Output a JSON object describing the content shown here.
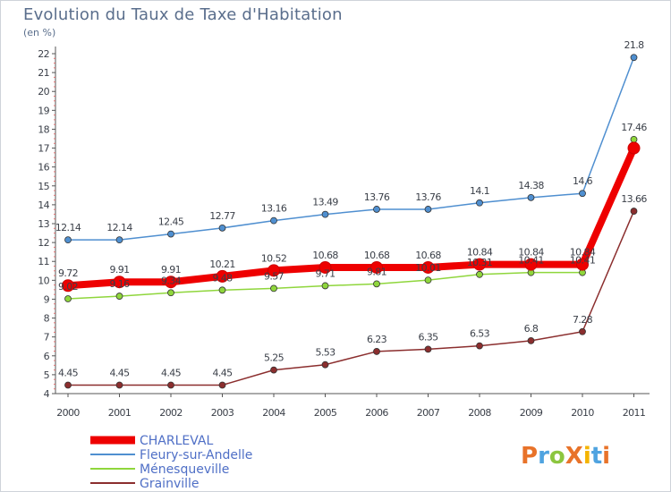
{
  "chart_data": {
    "type": "line",
    "title": "Evolution du Taux de Taxe d'Habitation",
    "ylabel": "(en %)",
    "x": [
      "2000",
      "2001",
      "2002",
      "2003",
      "2004",
      "2005",
      "2006",
      "2007",
      "2008",
      "2009",
      "2010",
      "2011"
    ],
    "ylim": [
      4,
      22
    ],
    "yticks": [
      "4",
      "5",
      "6",
      "7",
      "8",
      "9",
      "10",
      "11",
      "12",
      "13",
      "14",
      "15",
      "16",
      "17",
      "18",
      "19",
      "20",
      "21",
      "22"
    ],
    "grid": false,
    "legend_position": "bottom-left",
    "series": [
      {
        "name": "CHARLEVAL",
        "color": "#ee0000",
        "values": [
          9.72,
          9.91,
          9.91,
          10.21,
          10.52,
          10.68,
          10.68,
          10.68,
          10.84,
          10.84,
          10.84,
          17.0
        ]
      },
      {
        "name": "Fleury-sur-Andelle",
        "color": "#4f8fd0",
        "values": [
          12.14,
          12.14,
          12.45,
          12.77,
          13.16,
          13.49,
          13.76,
          13.76,
          14.1,
          14.38,
          14.6,
          21.8
        ]
      },
      {
        "name": "Ménesqueville",
        "color": "#8fd63c",
        "values": [
          9.02,
          9.16,
          9.34,
          9.48,
          9.57,
          9.71,
          9.81,
          10.01,
          10.31,
          10.41,
          10.41,
          17.46
        ]
      },
      {
        "name": "Grainville",
        "color": "#8b2e2e",
        "values": [
          4.45,
          4.45,
          4.45,
          4.45,
          5.25,
          5.53,
          6.23,
          6.35,
          6.53,
          6.8,
          7.28,
          13.66
        ]
      }
    ],
    "data_labels": {
      "CHARLEVAL": [
        "9.72",
        "9.91",
        "9.91",
        "10.21",
        "10.52",
        "10.68",
        "10.68",
        "10.68",
        "10.84",
        "10.84",
        "10.84",
        ""
      ],
      "Fleury-sur-Andelle": [
        "12.14",
        "12.14",
        "12.45",
        "12.77",
        "13.16",
        "13.49",
        "13.76",
        "13.76",
        "14.1",
        "14.38",
        "14.6",
        "21.8"
      ],
      "Ménesqueville": [
        "9.02",
        "9.16",
        "9.34",
        "9.48",
        "9.57",
        "9.71",
        "9.81",
        "10.01",
        "10.31",
        "10.41",
        "10.41",
        "17.46"
      ],
      "Grainville": [
        "4.45",
        "4.45",
        "4.45",
        "4.45",
        "5.25",
        "5.53",
        "6.23",
        "6.35",
        "6.53",
        "6.8",
        "7.28",
        "13.66"
      ]
    }
  },
  "logo": {
    "text": "ProXiti"
  }
}
